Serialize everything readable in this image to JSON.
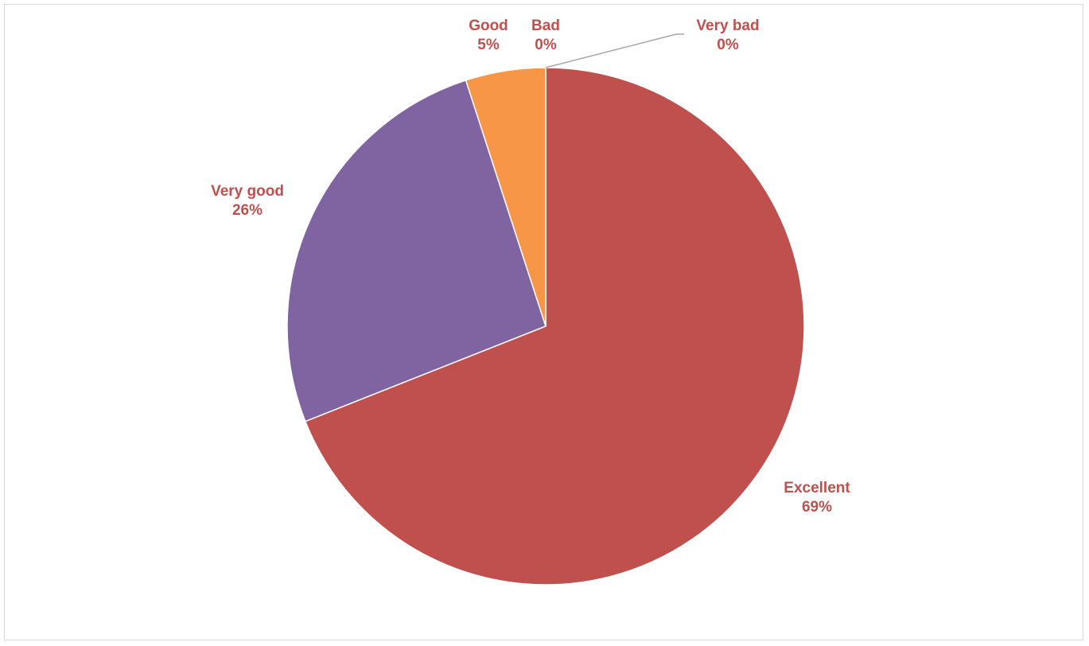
{
  "chart_data": {
    "type": "pie",
    "slices": [
      {
        "name": "Excellent",
        "value": 69,
        "pct_label": "69%",
        "color": "#c0504d"
      },
      {
        "name": "Very good",
        "value": 26,
        "pct_label": "26%",
        "color": "#8064a2"
      },
      {
        "name": "Good",
        "value": 5,
        "pct_label": "5%",
        "color": "#f79646"
      },
      {
        "name": "Bad",
        "value": 0,
        "pct_label": "0%",
        "color": "#4bacc6"
      },
      {
        "name": "Very bad",
        "value": 0,
        "pct_label": "0%",
        "color": "#9bbb59"
      }
    ],
    "label_color": "#c0504d",
    "leader_line_color": "#a6a6a6",
    "legend": "none"
  }
}
